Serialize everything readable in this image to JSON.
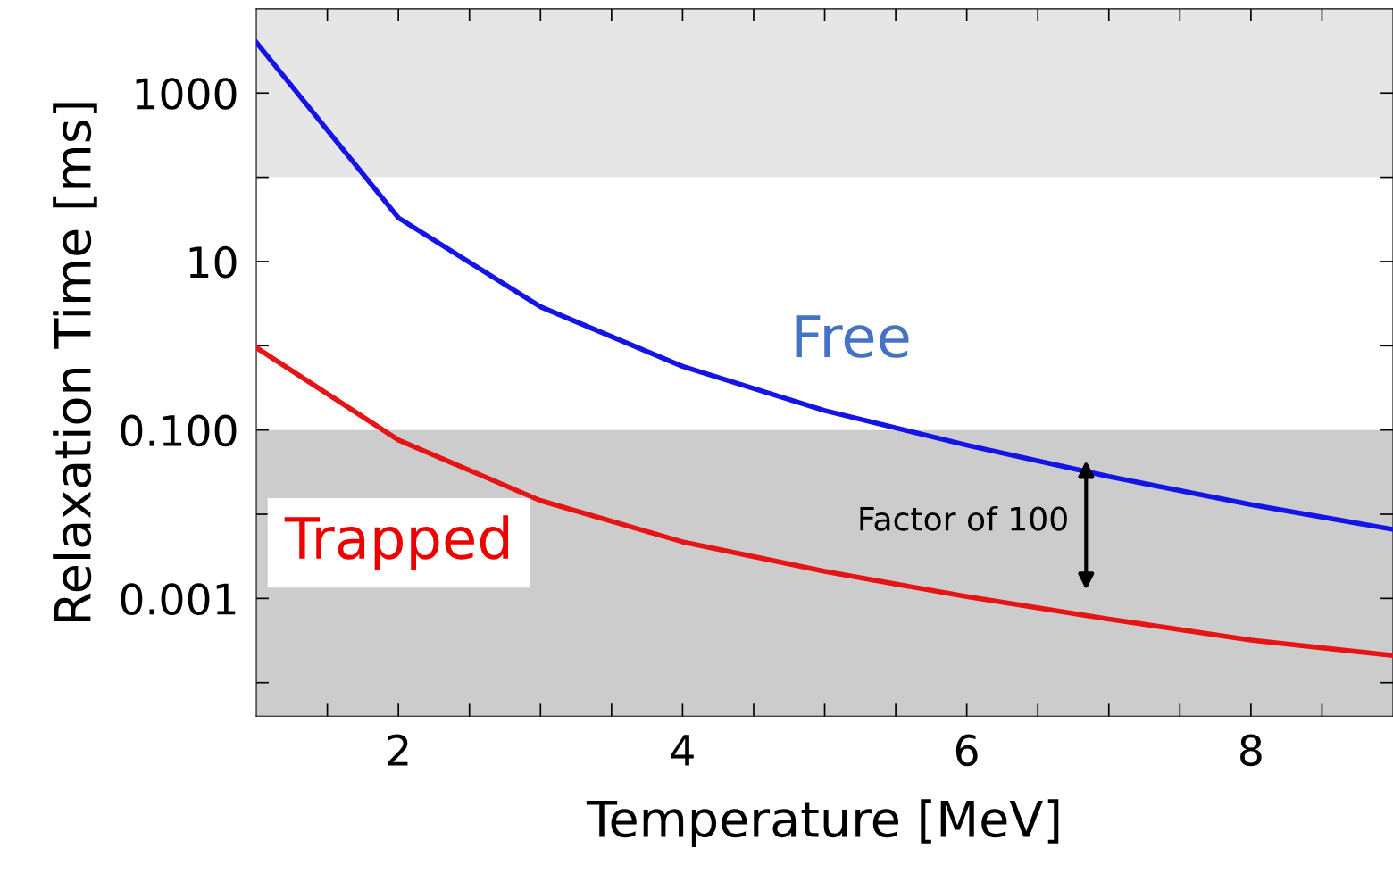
{
  "chart_data": {
    "type": "line",
    "xlabel": "Temperature [MeV]",
    "ylabel": "Relaxation Time [ms]",
    "log": "y",
    "x": [
      1,
      2,
      3,
      4,
      5,
      6,
      7,
      8,
      9
    ],
    "series": [
      {
        "name": "Free",
        "color": "#1414e6",
        "values": [
          4000,
          33,
          2.9,
          0.57,
          0.17,
          0.066,
          0.028,
          0.013,
          0.0066
        ]
      },
      {
        "name": "Trapped",
        "color": "#e61414",
        "values": [
          0.95,
          0.076,
          0.0145,
          0.0047,
          0.0021,
          0.00105,
          0.00057,
          0.00032,
          0.00021
        ]
      }
    ],
    "xlim": [
      1,
      9
    ],
    "ylim": [
      4e-05,
      10000
    ],
    "xticks": [
      {
        "value": 1.5,
        "label": null
      },
      2,
      {
        "value": 2.5,
        "label": null
      },
      {
        "value": 3,
        "label": null
      },
      {
        "value": 3.5,
        "label": null
      },
      4,
      {
        "value": 4.5,
        "label": null
      },
      {
        "value": 5,
        "label": null
      },
      {
        "value": 5.5,
        "label": null
      },
      6,
      {
        "value": 6.5,
        "label": null
      },
      {
        "value": 7,
        "label": null
      },
      {
        "value": 7.5,
        "label": null
      },
      8,
      {
        "value": 8.5,
        "label": null
      }
    ],
    "yticks": [
      {
        "value": 0.0001,
        "label": null
      },
      {
        "value": 0.001,
        "label": "0.001"
      },
      {
        "value": 0.01,
        "label": null
      },
      {
        "value": 0.1,
        "label": "0.100"
      },
      {
        "value": 1,
        "label": null
      },
      10,
      {
        "value": 100,
        "label": null
      },
      1000
    ],
    "bands": [
      {
        "axis": "y",
        "from": 100,
        "to": 10000,
        "color": "#e6e6e6"
      },
      {
        "axis": "y",
        "from": 4e-05,
        "to": 0.1,
        "color": "#cccccc"
      }
    ],
    "annotations": [
      "Factor of 100"
    ],
    "grid": false,
    "legend": false,
    "line_style": "solid",
    "marker": "none"
  }
}
